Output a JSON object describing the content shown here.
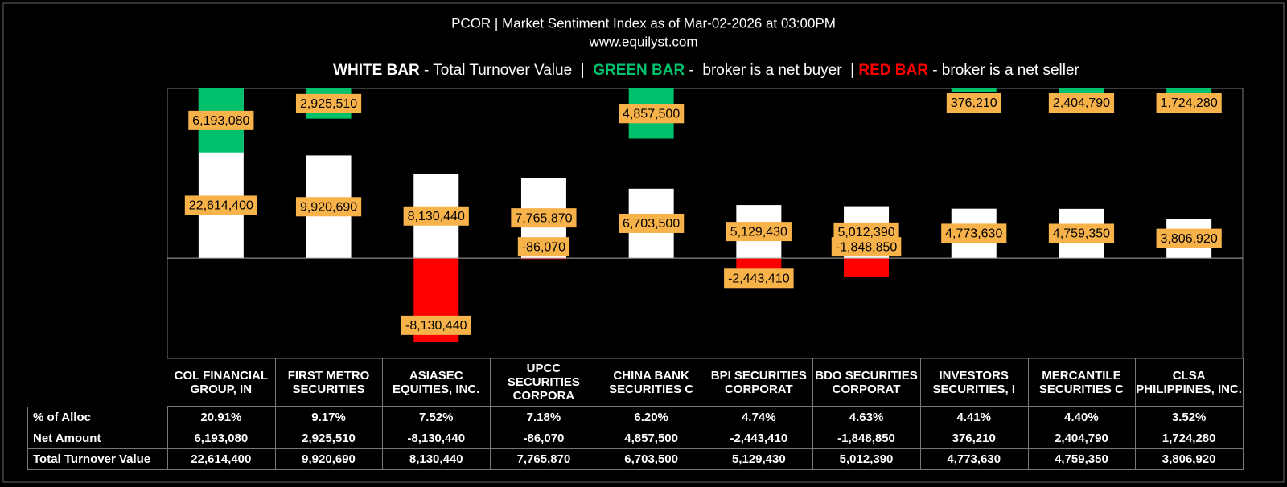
{
  "chart_data": {
    "type": "bar",
    "title": "PCOR | Market Sentiment Index as of Mar-02-2026 at 03:00PM",
    "subtitle": "www.equilyst.com",
    "legend": [
      {
        "key": "WHITE BAR",
        "text": " - Total Turnover Value  |  ",
        "color": "#ffffff"
      },
      {
        "key": "GREEN BAR",
        "text": " -  broker is a net buyer  | ",
        "color": "#00c06b"
      },
      {
        "key": "RED BAR",
        "text": " - broker is a net seller",
        "color": "#ff0000"
      }
    ],
    "categories": [
      "COL FINANCIAL GROUP, IN",
      "FIRST METRO SECURITIES",
      "ASIASEC EQUITIES, INC.",
      "UPCC SECURITIES CORPORA",
      "CHINA BANK SECURITIES C",
      "BPI SECURITIES CORPORAT",
      "BDO SECURITIES CORPORAT",
      "INVESTORS SECURITIES, I",
      "MERCANTILE SECURITIES C",
      "CLSA PHILIPPINES, INC."
    ],
    "ylim": [
      -9700000,
      16400000
    ],
    "series": [
      {
        "name": "Total Turnover Value",
        "color": "#ffffff",
        "values": [
          22614400,
          9920690,
          8130440,
          7765870,
          6703500,
          5129430,
          5012390,
          4773630,
          4759350,
          3806920
        ],
        "value_labels": [
          "22,614,400",
          "9,920,690",
          "8,130,440",
          "7,765,870",
          "6,703,500",
          "5,129,430",
          "5,012,390",
          "4,773,630",
          "4,759,350",
          "3,806,920"
        ]
      },
      {
        "name": "Net Amount",
        "color": "#00c06b",
        "negative_color": "#ff0000",
        "values": [
          6193080,
          2925510,
          -8130440,
          -86070,
          4857500,
          -2443410,
          -1848850,
          376210,
          2404790,
          1724280
        ],
        "value_labels": [
          "6,193,080",
          "2,925,510",
          "-8,130,440",
          "-86,070",
          "4,857,500",
          "-2,443,410",
          "-1,848,850",
          "376,210",
          "2,404,790",
          "1,724,280"
        ]
      }
    ],
    "allocation": {
      "name": "% of Alloc",
      "labels": [
        "20.91%",
        "9.17%",
        "7.52%",
        "7.18%",
        "6.20%",
        "4.74%",
        "4.63%",
        "4.41%",
        "4.40%",
        "3.52%"
      ]
    }
  }
}
